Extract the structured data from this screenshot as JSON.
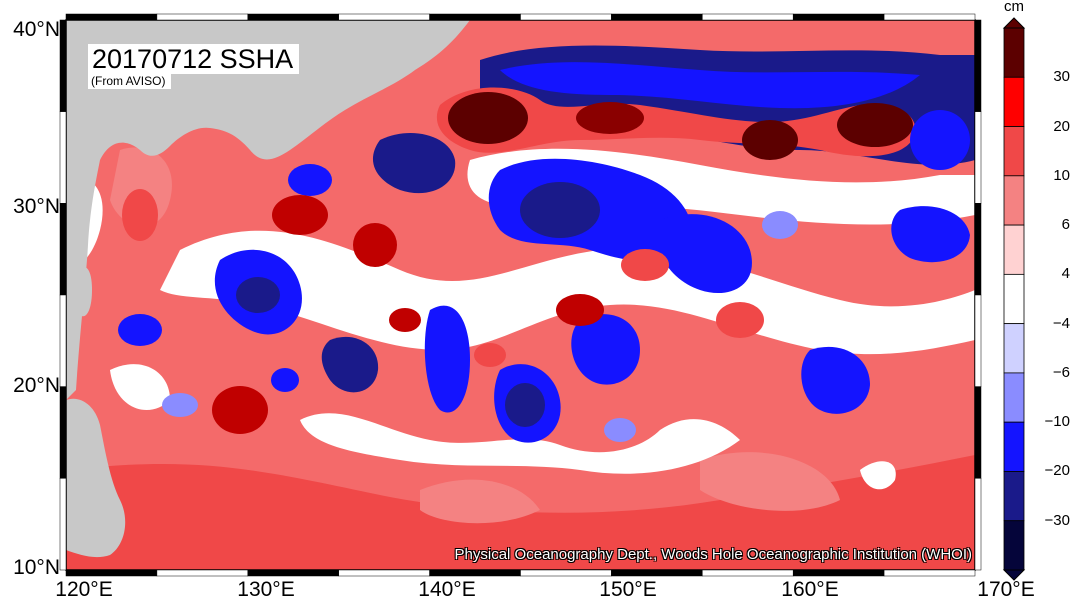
{
  "title": "20170712 SSHA",
  "source": "(From AVISO)",
  "credit": "Physical Oceanography Dept., Woods Hole Oceanographic Institution (WHOI)",
  "lat_labels": [
    "40°N",
    "30°N",
    "20°N",
    "10°N"
  ],
  "lon_labels": [
    "120°E",
    "130°E",
    "140°E",
    "150°E",
    "160°E",
    "170°E"
  ],
  "colorbar": {
    "unit": "cm",
    "tick_labels": [
      "30",
      "20",
      "10",
      "6",
      "4",
      "−4",
      "−6",
      "−10",
      "−20",
      "−30"
    ],
    "colors": [
      "#5c0000",
      "#ff0000",
      "#f04848",
      "#f48282",
      "#ffd2d2",
      "#ffffff",
      "#cfd1ff",
      "#8a8cff",
      "#1414ff",
      "#1a1a8a",
      "#05053a"
    ]
  },
  "palette": {
    "land": "#c8c8c8",
    "ocean_base": "#f46a6a",
    "frame": "#000000"
  }
}
